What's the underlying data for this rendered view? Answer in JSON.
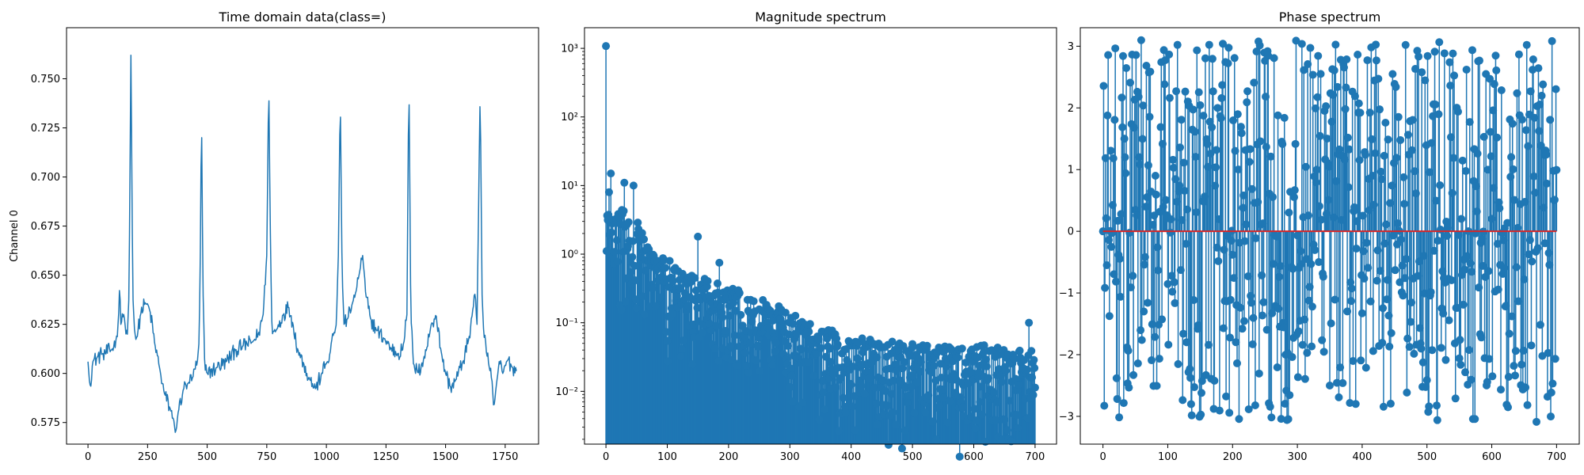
{
  "chart_data": [
    {
      "type": "line",
      "title": "Time domain data(class=)",
      "xlabel": "",
      "ylabel": "Channel 0",
      "xlim": [
        -90,
        1890
      ],
      "ylim": [
        0.564,
        0.776
      ],
      "xticks": [
        0,
        250,
        500,
        750,
        1000,
        1250,
        1500,
        1750
      ],
      "xtick_labels": [
        "0",
        "250",
        "500",
        "750",
        "1000",
        "1250",
        "1500",
        "1750"
      ],
      "yticks": [
        0.575,
        0.6,
        0.625,
        0.65,
        0.675,
        0.7,
        0.725,
        0.75
      ],
      "ytick_labels": [
        "0.575",
        "0.600",
        "0.625",
        "0.650",
        "0.675",
        "0.700",
        "0.725",
        "0.750"
      ],
      "color": "#1f77b4",
      "num_samples": 1800,
      "key_points": [
        [
          0,
          0.606
        ],
        [
          8,
          0.593
        ],
        [
          20,
          0.606
        ],
        [
          60,
          0.61
        ],
        [
          100,
          0.612
        ],
        [
          118,
          0.617
        ],
        [
          128,
          0.627
        ],
        [
          133,
          0.646
        ],
        [
          138,
          0.625
        ],
        [
          150,
          0.63
        ],
        [
          165,
          0.62
        ],
        [
          172,
          0.64
        ],
        [
          180,
          0.762
        ],
        [
          188,
          0.64
        ],
        [
          196,
          0.62
        ],
        [
          206,
          0.618
        ],
        [
          220,
          0.63
        ],
        [
          240,
          0.636
        ],
        [
          260,
          0.632
        ],
        [
          280,
          0.615
        ],
        [
          300,
          0.603
        ],
        [
          320,
          0.59
        ],
        [
          345,
          0.582
        ],
        [
          360,
          0.576
        ],
        [
          367,
          0.569
        ],
        [
          378,
          0.58
        ],
        [
          400,
          0.592
        ],
        [
          420,
          0.595
        ],
        [
          440,
          0.598
        ],
        [
          458,
          0.605
        ],
        [
          465,
          0.615
        ],
        [
          470,
          0.645
        ],
        [
          476,
          0.735
        ],
        [
          482,
          0.645
        ],
        [
          490,
          0.602
        ],
        [
          500,
          0.6
        ],
        [
          540,
          0.603
        ],
        [
          580,
          0.606
        ],
        [
          620,
          0.612
        ],
        [
          650,
          0.614
        ],
        [
          690,
          0.616
        ],
        [
          715,
          0.62
        ],
        [
          735,
          0.63
        ],
        [
          750,
          0.66
        ],
        [
          758,
          0.75
        ],
        [
          766,
          0.66
        ],
        [
          772,
          0.62
        ],
        [
          790,
          0.622
        ],
        [
          820,
          0.63
        ],
        [
          842,
          0.634
        ],
        [
          860,
          0.625
        ],
        [
          880,
          0.612
        ],
        [
          905,
          0.605
        ],
        [
          930,
          0.597
        ],
        [
          955,
          0.592
        ],
        [
          980,
          0.6
        ],
        [
          1000,
          0.605
        ],
        [
          1015,
          0.61
        ],
        [
          1030,
          0.62
        ],
        [
          1042,
          0.625
        ],
        [
          1050,
          0.66
        ],
        [
          1058,
          0.742
        ],
        [
          1066,
          0.65
        ],
        [
          1074,
          0.625
        ],
        [
          1090,
          0.628
        ],
        [
          1110,
          0.636
        ],
        [
          1125,
          0.642
        ],
        [
          1140,
          0.652
        ],
        [
          1152,
          0.66
        ],
        [
          1165,
          0.64
        ],
        [
          1185,
          0.628
        ],
        [
          1210,
          0.622
        ],
        [
          1240,
          0.618
        ],
        [
          1270,
          0.613
        ],
        [
          1300,
          0.61
        ],
        [
          1320,
          0.612
        ],
        [
          1338,
          0.63
        ],
        [
          1346,
          0.752
        ],
        [
          1354,
          0.63
        ],
        [
          1365,
          0.605
        ],
        [
          1385,
          0.6
        ],
        [
          1400,
          0.605
        ],
        [
          1420,
          0.612
        ],
        [
          1440,
          0.625
        ],
        [
          1460,
          0.63
        ],
        [
          1480,
          0.612
        ],
        [
          1500,
          0.6
        ],
        [
          1520,
          0.593
        ],
        [
          1540,
          0.596
        ],
        [
          1570,
          0.605
        ],
        [
          1595,
          0.616
        ],
        [
          1612,
          0.63
        ],
        [
          1622,
          0.642
        ],
        [
          1632,
          0.625
        ],
        [
          1645,
          0.745
        ],
        [
          1653,
          0.64
        ],
        [
          1660,
          0.62
        ],
        [
          1672,
          0.61
        ],
        [
          1685,
          0.602
        ],
        [
          1695,
          0.596
        ],
        [
          1702,
          0.582
        ],
        [
          1712,
          0.593
        ],
        [
          1725,
          0.606
        ],
        [
          1740,
          0.6
        ],
        [
          1760,
          0.607
        ],
        [
          1780,
          0.603
        ],
        [
          1799,
          0.601
        ]
      ]
    },
    {
      "type": "stem",
      "title": "Magnitude spectrum",
      "xlabel": "",
      "ylabel": "",
      "yscale": "log",
      "xlim": [
        -35,
        735
      ],
      "ylim": [
        0.0017,
        2000
      ],
      "xticks": [
        0,
        100,
        200,
        300,
        400,
        500,
        600,
        700
      ],
      "xtick_labels": [
        "0",
        "100",
        "200",
        "300",
        "400",
        "500",
        "600",
        "700"
      ],
      "yticks": [
        0.01,
        0.1,
        1,
        10,
        100,
        1000
      ],
      "ytick_labels": [
        "10⁻²",
        "10⁻¹",
        "10⁰",
        "10¹",
        "10²",
        "10³"
      ],
      "color": "#1f77b4",
      "num_points": 701,
      "dc_value": 1080,
      "notable_points": [
        [
          0,
          1080
        ],
        [
          5,
          8
        ],
        [
          8,
          15
        ],
        [
          30,
          11
        ],
        [
          45,
          10
        ],
        [
          150,
          1.8
        ],
        [
          185,
          0.75
        ],
        [
          690,
          0.1
        ]
      ],
      "envelope": [
        [
          1,
          6
        ],
        [
          10,
          6
        ],
        [
          20,
          5
        ],
        [
          40,
          4
        ],
        [
          60,
          2.5
        ],
        [
          80,
          1.2
        ],
        [
          100,
          0.9
        ],
        [
          150,
          0.5
        ],
        [
          200,
          0.35
        ],
        [
          250,
          0.25
        ],
        [
          300,
          0.15
        ],
        [
          350,
          0.09
        ],
        [
          400,
          0.07
        ],
        [
          450,
          0.06
        ],
        [
          500,
          0.05
        ],
        [
          600,
          0.05
        ],
        [
          700,
          0.04
        ]
      ]
    },
    {
      "type": "stem",
      "title": "Phase spectrum",
      "xlabel": "",
      "ylabel": "",
      "xlim": [
        -35,
        735
      ],
      "ylim": [
        -3.45,
        3.3
      ],
      "xticks": [
        0,
        100,
        200,
        300,
        400,
        500,
        600,
        700
      ],
      "xtick_labels": [
        "0",
        "100",
        "200",
        "300",
        "400",
        "500",
        "600",
        "700"
      ],
      "yticks": [
        -3,
        -2,
        -1,
        0,
        1,
        2,
        3
      ],
      "ytick_labels": [
        "−3",
        "−2",
        "−1",
        "0",
        "1",
        "2",
        "3"
      ],
      "color": "#1f77b4",
      "baseline_color": "#d62728",
      "baseline_value": 0,
      "num_points": 701,
      "value_range": [
        -3.14,
        3.14
      ]
    }
  ]
}
